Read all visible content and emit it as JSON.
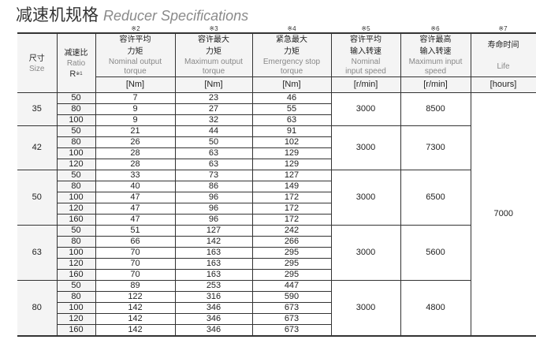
{
  "title": {
    "zh": "减速机规格",
    "en": "Reducer Specifications"
  },
  "notes": [
    "※2",
    "※3",
    "※4",
    "※5",
    "※6",
    "※7"
  ],
  "headers": {
    "size": {
      "zh": "尺寸",
      "en": "Size"
    },
    "ratio": {
      "zh": "减速比",
      "en": "Ratio",
      "sym": "R",
      "note": "※1"
    },
    "nominal_torque": {
      "zh1": "容许平均",
      "zh2": "力矩",
      "en1": "Nominal output",
      "en2": "torque",
      "unit": "[Nm]"
    },
    "max_torque": {
      "zh1": "容许最大",
      "zh2": "力矩",
      "en1": "Maximum output",
      "en2": "torque",
      "unit": "[Nm]"
    },
    "emergency_torque": {
      "zh1": "紧急最大",
      "zh2": "力矩",
      "en1": "Emergency stop",
      "en2": "torque",
      "unit": "[Nm]"
    },
    "nominal_speed": {
      "zh1": "容许平均",
      "zh2": "输入转速",
      "en1": "Nominal",
      "en2": "input speed",
      "unit": "[r/min]"
    },
    "max_speed": {
      "zh1": "容许最高",
      "zh2": "输入转速",
      "en1": "Maximum input",
      "en2": "speed",
      "unit": "[r/min]"
    },
    "life": {
      "zh": "寿命时间",
      "en": "Life",
      "unit": "[hours]"
    }
  },
  "life": "7000",
  "groups": [
    {
      "size": "35",
      "nominal_speed": "3000",
      "max_speed": "8500",
      "rows": [
        [
          "50",
          "7",
          "23",
          "46"
        ],
        [
          "80",
          "9",
          "27",
          "55"
        ],
        [
          "100",
          "9",
          "32",
          "63"
        ]
      ]
    },
    {
      "size": "42",
      "nominal_speed": "3000",
      "max_speed": "7300",
      "rows": [
        [
          "50",
          "21",
          "44",
          "91"
        ],
        [
          "80",
          "26",
          "50",
          "102"
        ],
        [
          "100",
          "28",
          "63",
          "129"
        ],
        [
          "120",
          "28",
          "63",
          "129"
        ]
      ]
    },
    {
      "size": "50",
      "nominal_speed": "3000",
      "max_speed": "6500",
      "rows": [
        [
          "50",
          "33",
          "73",
          "127"
        ],
        [
          "80",
          "40",
          "86",
          "149"
        ],
        [
          "100",
          "47",
          "96",
          "172"
        ],
        [
          "120",
          "47",
          "96",
          "172"
        ],
        [
          "160",
          "47",
          "96",
          "172"
        ]
      ]
    },
    {
      "size": "63",
      "nominal_speed": "3000",
      "max_speed": "5600",
      "rows": [
        [
          "50",
          "51",
          "127",
          "242"
        ],
        [
          "80",
          "66",
          "142",
          "266"
        ],
        [
          "100",
          "70",
          "163",
          "295"
        ],
        [
          "120",
          "70",
          "163",
          "295"
        ],
        [
          "160",
          "70",
          "163",
          "295"
        ]
      ]
    },
    {
      "size": "80",
      "nominal_speed": "3000",
      "max_speed": "4800",
      "rows": [
        [
          "50",
          "89",
          "253",
          "447"
        ],
        [
          "80",
          "122",
          "316",
          "590"
        ],
        [
          "100",
          "142",
          "346",
          "673"
        ],
        [
          "120",
          "142",
          "346",
          "673"
        ],
        [
          "160",
          "142",
          "346",
          "673"
        ]
      ]
    }
  ]
}
